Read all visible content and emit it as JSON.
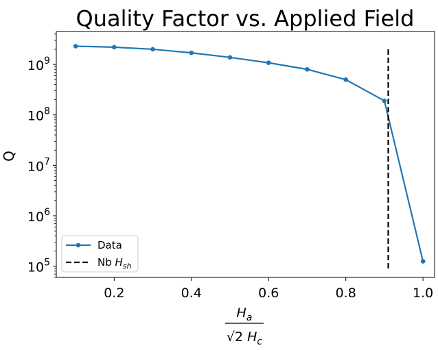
{
  "chart_data": {
    "type": "line",
    "title": "Quality Factor vs. Applied Field",
    "ylabel": "Q",
    "xlabel": {
      "numerator": "H_a",
      "denominator": "√2 H_c"
    },
    "xscale": "linear",
    "yscale": "log",
    "xlim": [
      0.05,
      1.03
    ],
    "ylim": [
      60000,
      4500000000
    ],
    "x_ticks": [
      "0.2",
      "0.4",
      "0.6",
      "0.8",
      "1.0"
    ],
    "y_ticks": [
      {
        "base": "10",
        "exp": "5"
      },
      {
        "base": "10",
        "exp": "6"
      },
      {
        "base": "10",
        "exp": "7"
      },
      {
        "base": "10",
        "exp": "8"
      },
      {
        "base": "10",
        "exp": "9"
      }
    ],
    "series": [
      {
        "name": "Data",
        "color": "#1f77b4",
        "style": "solid-with-markers",
        "x": [
          0.1,
          0.2,
          0.3,
          0.4,
          0.5,
          0.6,
          0.7,
          0.8,
          0.9,
          1.0
        ],
        "y": [
          2300000000,
          2200000000,
          2000000000,
          1700000000,
          1380000000,
          1080000000,
          800000000,
          500000000,
          190000000,
          125000
        ]
      },
      {
        "name": "Nb H_sh",
        "color": "#000000",
        "style": "dashed-vertical",
        "x": [
          0.91,
          0.91
        ],
        "y": [
          90000,
          2000000000
        ]
      }
    ],
    "legend": {
      "placement": "lower-left",
      "entries": [
        {
          "label": "Data",
          "parts": [
            {
              "t": "Data"
            }
          ]
        },
        {
          "label": "Nb H_sh",
          "parts": [
            {
              "t": "Nb "
            },
            {
              "t": "H",
              "i": true
            },
            {
              "t": "sh",
              "i": true,
              "sub": true
            }
          ]
        }
      ]
    },
    "grid": false
  }
}
